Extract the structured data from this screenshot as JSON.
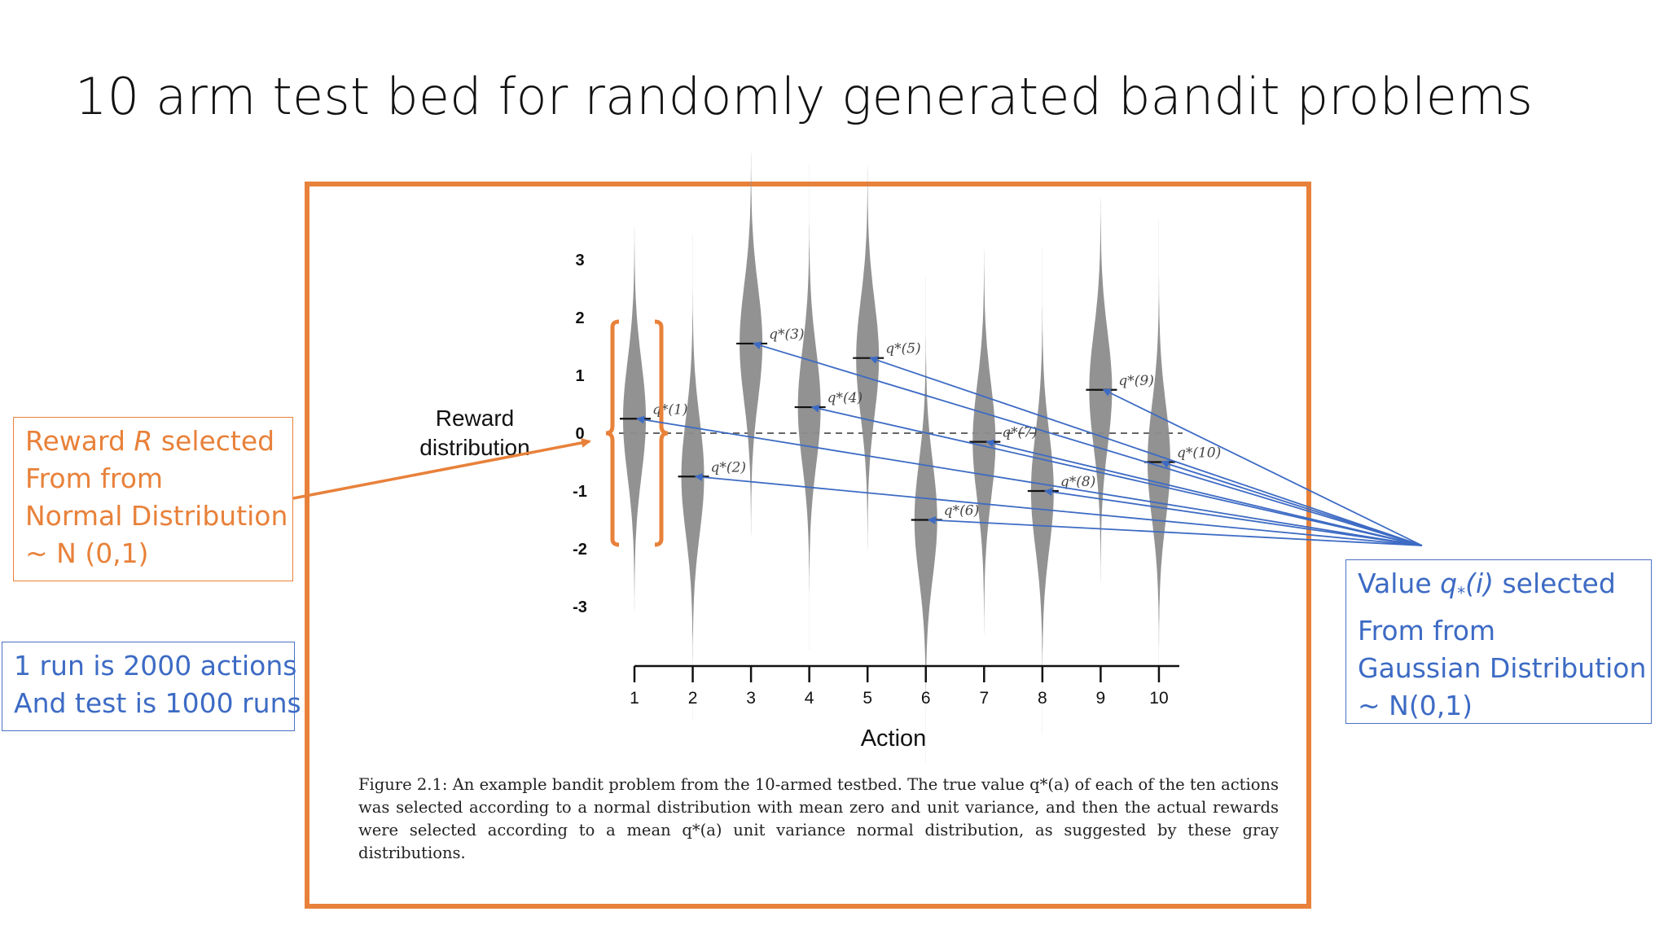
{
  "slide": {
    "title": "10 arm test bed for randomly generated bandit problems"
  },
  "left_boxes": {
    "reward_box": {
      "line1": "Reward R selected",
      "line2": "From from",
      "line3": "Normal Distribution",
      "line4": "~ N (0,1)"
    },
    "run_box": {
      "line1": "1 run is 2000 actions",
      "line2": "And test is 1000 runs"
    }
  },
  "right_box": {
    "line1": "Value q*(i) selected",
    "line2": "From from",
    "line3": "Gaussian Distribution",
    "line4": "~ N(0,1)"
  },
  "caption": "Figure 2.1: An example bandit problem from the 10-armed testbed. The true value q*(a) of each of the ten actions was selected according to a normal distribution with mean zero and unit variance, and then the actual rewards were selected according to a mean q*(a) unit variance normal distribution, as suggested by these gray distributions.",
  "colors": {
    "frame": "#e8813a",
    "annotation_blue": "#3d6bc4",
    "violin_fill": "#8c8c8c"
  },
  "chart_data": {
    "type": "violin",
    "title": "",
    "xlabel": "Action",
    "ylabel": "Reward distribution",
    "categories": [
      "1",
      "2",
      "3",
      "4",
      "5",
      "6",
      "7",
      "8",
      "9",
      "10"
    ],
    "values": [
      0.25,
      -0.75,
      1.55,
      0.45,
      1.3,
      -1.5,
      -0.15,
      -1.0,
      0.75,
      -0.5
    ],
    "value_labels": [
      "q*(1)",
      "q*(2)",
      "q*(3)",
      "q*(4)",
      "q*(5)",
      "q*(6)",
      "q*(7)",
      "q*(8)",
      "q*(9)",
      "q*(10)"
    ],
    "yticks": [
      "3",
      "2",
      "1",
      "0",
      "-1",
      "-2",
      "-3"
    ],
    "ylim": [
      -4,
      4
    ],
    "spread_sd": 1,
    "zero_line": "dashed",
    "grid": false,
    "legend": "none"
  }
}
